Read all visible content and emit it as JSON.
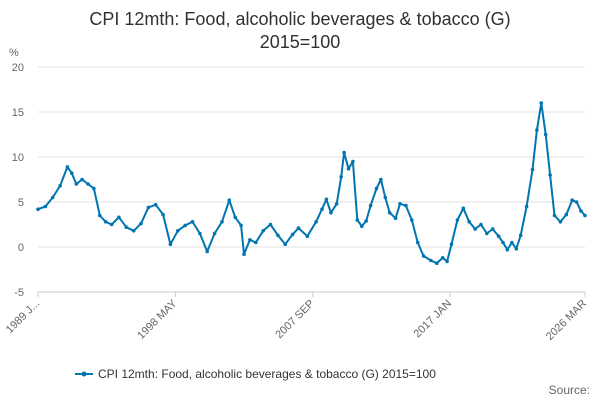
{
  "chart_data": {
    "type": "line",
    "title_lines": [
      "CPI 12mth: Food, alcoholic beverages & tobacco (G)",
      "2015=100"
    ],
    "ylabel": "%",
    "ylim": [
      -5,
      20
    ],
    "yticks": [
      -5,
      0,
      5,
      10,
      15,
      20
    ],
    "xlim": [
      1989.0,
      2026.17
    ],
    "xticks": [
      {
        "x": 1989.0,
        "label": "1989 J..."
      },
      {
        "x": 1998.33,
        "label": "1998 MAY"
      },
      {
        "x": 2007.67,
        "label": "2007 SEP"
      },
      {
        "x": 2017.0,
        "label": "2017 JAN"
      },
      {
        "x": 2026.17,
        "label": "2026 MAR"
      }
    ],
    "grid": true,
    "legend_position": "bottom",
    "source_label": "Source:",
    "colors": {
      "series": "#0075b0",
      "grid": "#e0e0e0",
      "text": "#323132"
    },
    "series": [
      {
        "name": "CPI 12mth: Food, alcoholic beverages & tobacco (G) 2015=100",
        "points": [
          [
            1989.0,
            4.2
          ],
          [
            1989.5,
            4.5
          ],
          [
            1990.0,
            5.5
          ],
          [
            1990.5,
            6.8
          ],
          [
            1991.0,
            8.9
          ],
          [
            1991.3,
            8.2
          ],
          [
            1991.6,
            7.0
          ],
          [
            1992.0,
            7.5
          ],
          [
            1992.4,
            7.0
          ],
          [
            1992.8,
            6.5
          ],
          [
            1993.2,
            3.5
          ],
          [
            1993.6,
            2.8
          ],
          [
            1994.0,
            2.5
          ],
          [
            1994.5,
            3.3
          ],
          [
            1995.0,
            2.2
          ],
          [
            1995.5,
            1.8
          ],
          [
            1996.0,
            2.6
          ],
          [
            1996.5,
            4.4
          ],
          [
            1997.0,
            4.7
          ],
          [
            1997.5,
            3.6
          ],
          [
            1998.0,
            0.3
          ],
          [
            1998.5,
            1.8
          ],
          [
            1999.0,
            2.4
          ],
          [
            1999.5,
            2.8
          ],
          [
            2000.0,
            1.5
          ],
          [
            2000.5,
            -0.5
          ],
          [
            2001.0,
            1.5
          ],
          [
            2001.5,
            2.8
          ],
          [
            2002.0,
            5.2
          ],
          [
            2002.4,
            3.3
          ],
          [
            2002.8,
            2.4
          ],
          [
            2003.0,
            -0.8
          ],
          [
            2003.4,
            0.8
          ],
          [
            2003.8,
            0.5
          ],
          [
            2004.3,
            1.8
          ],
          [
            2004.8,
            2.5
          ],
          [
            2005.3,
            1.3
          ],
          [
            2005.8,
            0.3
          ],
          [
            2006.3,
            1.4
          ],
          [
            2006.7,
            2.1
          ],
          [
            2007.3,
            1.2
          ],
          [
            2007.9,
            2.8
          ],
          [
            2008.3,
            4.2
          ],
          [
            2008.6,
            5.3
          ],
          [
            2008.9,
            3.8
          ],
          [
            2009.3,
            4.8
          ],
          [
            2009.6,
            7.8
          ],
          [
            2009.8,
            10.5
          ],
          [
            2010.1,
            8.7
          ],
          [
            2010.4,
            9.5
          ],
          [
            2010.7,
            3.0
          ],
          [
            2011.0,
            2.3
          ],
          [
            2011.3,
            2.9
          ],
          [
            2011.6,
            4.6
          ],
          [
            2012.0,
            6.5
          ],
          [
            2012.3,
            7.5
          ],
          [
            2012.6,
            5.5
          ],
          [
            2012.9,
            3.8
          ],
          [
            2013.3,
            3.2
          ],
          [
            2013.6,
            4.8
          ],
          [
            2014.0,
            4.6
          ],
          [
            2014.4,
            3.0
          ],
          [
            2014.8,
            0.5
          ],
          [
            2015.2,
            -1.0
          ],
          [
            2015.7,
            -1.5
          ],
          [
            2016.1,
            -1.8
          ],
          [
            2016.5,
            -1.2
          ],
          [
            2016.8,
            -1.6
          ],
          [
            2017.1,
            0.3
          ],
          [
            2017.5,
            3.0
          ],
          [
            2017.9,
            4.3
          ],
          [
            2018.3,
            2.8
          ],
          [
            2018.7,
            2.0
          ],
          [
            2019.1,
            2.5
          ],
          [
            2019.5,
            1.5
          ],
          [
            2019.9,
            2.0
          ],
          [
            2020.3,
            1.2
          ],
          [
            2020.6,
            0.5
          ],
          [
            2020.9,
            -0.3
          ],
          [
            2021.2,
            0.5
          ],
          [
            2021.5,
            -0.2
          ],
          [
            2021.8,
            1.3
          ],
          [
            2022.2,
            4.5
          ],
          [
            2022.6,
            8.6
          ],
          [
            2022.9,
            13.0
          ],
          [
            2023.2,
            16.0
          ],
          [
            2023.5,
            12.5
          ],
          [
            2023.8,
            8.0
          ],
          [
            2024.1,
            3.5
          ],
          [
            2024.5,
            2.8
          ],
          [
            2024.9,
            3.6
          ],
          [
            2025.3,
            5.2
          ],
          [
            2025.6,
            5.0
          ],
          [
            2025.9,
            4.0
          ],
          [
            2026.17,
            3.5
          ]
        ]
      }
    ]
  }
}
